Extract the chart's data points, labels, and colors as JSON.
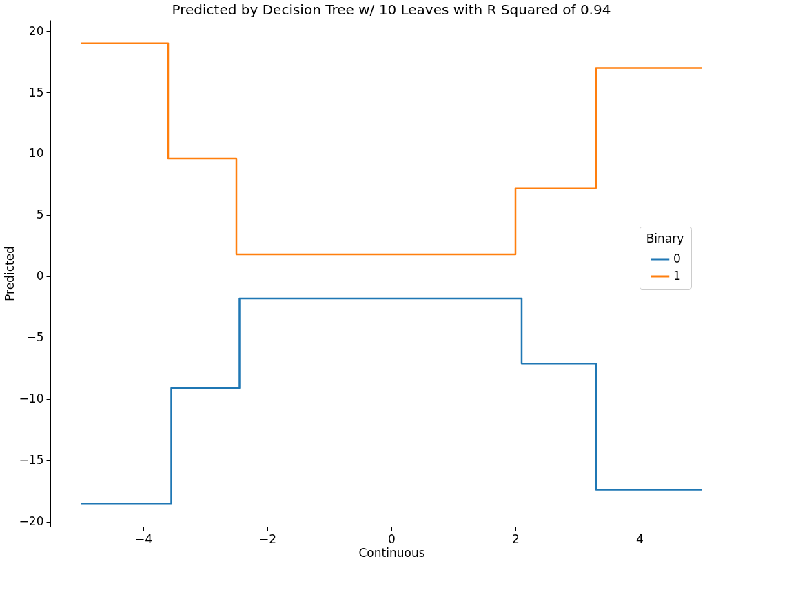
{
  "chart_data": {
    "type": "step",
    "title": "Predicted by Decision Tree w/ 10 Leaves with R Squared of 0.94",
    "xlabel": "Continuous",
    "ylabel": "Predicted",
    "legend_title": "Binary",
    "legend": "right",
    "grid": false,
    "xlim": [
      -5.5,
      5.5
    ],
    "xticks": [
      -4,
      -2,
      0,
      2,
      4
    ],
    "ylim": [
      -20.4,
      20.9
    ],
    "yticks": [
      -20,
      -15,
      -10,
      -5,
      0,
      5,
      10,
      15,
      20
    ],
    "series": [
      {
        "name": "0",
        "color": "#1f77b4",
        "x": [
          -5,
          -3.55,
          -2.45,
          2.1,
          3.3,
          5
        ],
        "values": [
          -18.5,
          -9.1,
          -1.8,
          -7.1,
          -17.4,
          -17.4
        ]
      },
      {
        "name": "1",
        "color": "#ff7f0e",
        "x": [
          -5,
          -3.6,
          -2.5,
          2.0,
          3.3,
          5
        ],
        "values": [
          19,
          9.6,
          1.8,
          7.2,
          17,
          17
        ]
      }
    ]
  }
}
